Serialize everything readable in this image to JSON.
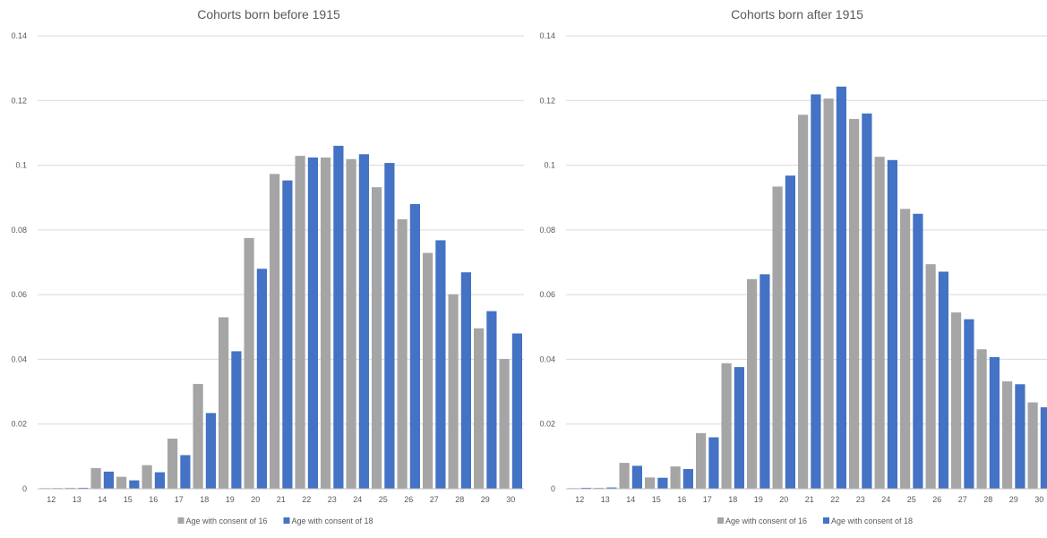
{
  "colors": {
    "series_16": "#a5a5a5",
    "series_18": "#4472c4"
  },
  "chart_data": [
    {
      "type": "bar",
      "title": "Cohorts born before 1915",
      "categories": [
        "12",
        "13",
        "14",
        "15",
        "16",
        "17",
        "18",
        "19",
        "20",
        "21",
        "22",
        "23",
        "24",
        "25",
        "26",
        "27",
        "28",
        "29",
        "30"
      ],
      "yticks": [
        "0",
        "0.02",
        "0.04",
        "0.06",
        "0.08",
        "0.1",
        "0.12",
        "0.14"
      ],
      "ylim": [
        0,
        0.14
      ],
      "grid": true,
      "legend": "bottom",
      "series": [
        {
          "name": "Age with consent of 16",
          "values": [
            0.0002,
            0.0003,
            0.0064,
            0.0037,
            0.0073,
            0.0155,
            0.0324,
            0.053,
            0.0775,
            0.0973,
            0.1029,
            0.1024,
            0.1019,
            0.0932,
            0.0833,
            0.0729,
            0.0601,
            0.0496,
            0.0401
          ]
        },
        {
          "name": "Age with consent of 18",
          "values": [
            0.0002,
            0.0003,
            0.0053,
            0.0026,
            0.0051,
            0.0104,
            0.0234,
            0.0425,
            0.068,
            0.0953,
            0.1024,
            0.106,
            0.1034,
            0.1007,
            0.088,
            0.0768,
            0.0669,
            0.0549,
            0.048
          ]
        }
      ]
    },
    {
      "type": "bar",
      "title": "Cohorts born after 1915",
      "categories": [
        "12",
        "13",
        "14",
        "15",
        "16",
        "17",
        "18",
        "19",
        "20",
        "21",
        "22",
        "23",
        "24",
        "25",
        "26",
        "27",
        "28",
        "29",
        "30"
      ],
      "yticks": [
        "0",
        "0.02",
        "0.04",
        "0.06",
        "0.08",
        "0.1",
        "0.12",
        "0.14"
      ],
      "ylim": [
        0,
        0.14
      ],
      "grid": true,
      "legend": "bottom",
      "series": [
        {
          "name": "Age with consent of 16",
          "values": [
            0.0002,
            0.0003,
            0.008,
            0.0035,
            0.0069,
            0.0172,
            0.0388,
            0.0648,
            0.0934,
            0.1156,
            0.1206,
            0.1143,
            0.1026,
            0.0865,
            0.0694,
            0.0545,
            0.0431,
            0.0332,
            0.0267
          ]
        },
        {
          "name": "Age with consent of 18",
          "values": [
            0.0003,
            0.0004,
            0.0071,
            0.0034,
            0.0061,
            0.0159,
            0.0376,
            0.0663,
            0.0968,
            0.1219,
            0.1243,
            0.116,
            0.1016,
            0.085,
            0.0671,
            0.0524,
            0.0407,
            0.0323,
            0.0252
          ]
        }
      ]
    }
  ]
}
